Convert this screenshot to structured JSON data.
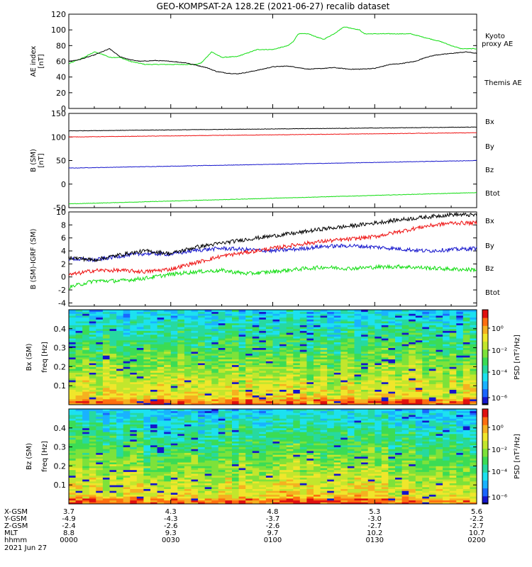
{
  "title": "GEO-KOMPSAT-2A 128.2E (2021-06-27) recalib dataset",
  "colors": {
    "black": "#000000",
    "red": "#ee1111",
    "blue": "#1515cc",
    "green": "#11dd11"
  },
  "chart_data": [
    {
      "type": "line",
      "id": "ae",
      "ylabel": "AE index [nT]",
      "ylim": [
        0,
        120
      ],
      "yticks": [
        0,
        20,
        40,
        60,
        80,
        100,
        120
      ],
      "legend_placement": "right",
      "series": [
        {
          "name": "Kyoto proxy AE",
          "color": "#11dd11",
          "x": [
            0,
            3,
            5,
            7,
            8,
            10,
            12,
            15,
            17,
            19,
            20,
            21,
            23,
            25,
            26,
            27,
            28,
            30,
            33,
            37,
            40,
            43,
            44,
            45,
            47,
            49,
            50,
            52,
            54,
            57,
            58,
            60,
            62,
            64,
            66,
            67,
            70,
            73,
            75,
            77,
            78,
            80
          ],
          "values": [
            57,
            65,
            72,
            68,
            65,
            65,
            60,
            56,
            56,
            56,
            56,
            56,
            56,
            56,
            58,
            65,
            72,
            65,
            66,
            75,
            75,
            80,
            85,
            95,
            95,
            90,
            88,
            95,
            104,
            100,
            95,
            95,
            95,
            95,
            95,
            95,
            90,
            85,
            80,
            76,
            76,
            76
          ]
        },
        {
          "name": "Themis AE",
          "color": "#000000",
          "x": [
            0,
            2,
            5,
            8,
            10,
            12,
            14,
            17,
            20,
            23,
            25,
            27,
            29,
            31,
            33,
            35,
            38,
            40,
            43,
            45,
            47,
            50,
            52,
            55,
            57,
            60,
            63,
            65,
            68,
            70,
            72,
            75,
            78,
            80
          ],
          "values": [
            60,
            62,
            68,
            76,
            66,
            62,
            60,
            61,
            60,
            58,
            55,
            52,
            47,
            45,
            44,
            46,
            50,
            53,
            54,
            52,
            50,
            51,
            52,
            50,
            50,
            51,
            56,
            57,
            60,
            65,
            68,
            70,
            72,
            70
          ]
        }
      ]
    },
    {
      "type": "line",
      "id": "bsm",
      "ylabel": "B (SM) [nT]",
      "ylim": [
        -50,
        150
      ],
      "yticks": [
        -50,
        0,
        50,
        100,
        150
      ],
      "legend_placement": "right",
      "series": [
        {
          "name": "Bx",
          "color": "#1515cc",
          "x": [
            0,
            80
          ],
          "values": [
            34,
            50
          ]
        },
        {
          "name": "By",
          "color": "#11dd11",
          "x": [
            0,
            80
          ],
          "values": [
            -42,
            -18
          ]
        },
        {
          "name": "Bz",
          "color": "#ee1111",
          "x": [
            0,
            80
          ],
          "values": [
            100,
            109
          ]
        },
        {
          "name": "Btot",
          "color": "#000000",
          "x": [
            0,
            80
          ],
          "values": [
            113,
            121
          ]
        }
      ]
    },
    {
      "type": "line",
      "id": "dbsm",
      "ylabel": "B (SM)-IGRF (SM)",
      "ylim": [
        -4.5,
        10
      ],
      "yticks": [
        -4,
        -2,
        0,
        2,
        4,
        6,
        8,
        10
      ],
      "legend_placement": "right",
      "series": [
        {
          "name": "Bx",
          "color": "#1515cc",
          "x": [
            0,
            5,
            10,
            15,
            20,
            25,
            30,
            35,
            40,
            45,
            50,
            55,
            60,
            65,
            70,
            75,
            80
          ],
          "values": [
            2.8,
            2.6,
            3.2,
            3.6,
            3.5,
            4.1,
            4.4,
            4.2,
            4.0,
            4.3,
            4.7,
            4.8,
            4.6,
            4.3,
            4.0,
            4.2,
            4.4
          ]
        },
        {
          "name": "By",
          "color": "#11dd11",
          "x": [
            0,
            5,
            10,
            15,
            20,
            25,
            30,
            35,
            40,
            45,
            50,
            55,
            60,
            65,
            70,
            75,
            80
          ],
          "values": [
            -1.6,
            -0.6,
            -0.6,
            -0.2,
            0.4,
            0.8,
            1.0,
            0.5,
            0.8,
            1.2,
            1.5,
            1.3,
            1.5,
            1.6,
            1.4,
            1.2,
            1.1
          ]
        },
        {
          "name": "Bz",
          "color": "#ee1111",
          "x": [
            0,
            5,
            10,
            15,
            20,
            25,
            30,
            35,
            40,
            45,
            50,
            55,
            60,
            65,
            70,
            75,
            80
          ],
          "values": [
            0.3,
            1.0,
            1.0,
            0.8,
            1.2,
            2.2,
            3.2,
            3.8,
            4.4,
            5.0,
            5.5,
            5.8,
            6.2,
            7.0,
            7.8,
            8.3,
            8.3
          ]
        },
        {
          "name": "Btot",
          "color": "#000000",
          "x": [
            0,
            5,
            10,
            15,
            20,
            25,
            30,
            35,
            40,
            45,
            50,
            55,
            60,
            65,
            70,
            75,
            80
          ],
          "values": [
            3.0,
            2.6,
            3.4,
            4.0,
            3.6,
            4.6,
            5.2,
            5.8,
            6.3,
            6.8,
            7.4,
            7.8,
            8.3,
            8.8,
            9.2,
            9.6,
            9.5
          ]
        }
      ]
    },
    {
      "type": "heatmap",
      "id": "specbx",
      "ylabel": "Bx (SM)",
      "ylabel2": "freq [Hz]",
      "ylim": [
        0,
        0.5
      ],
      "yticks": [
        0.1,
        0.2,
        0.3,
        0.4
      ],
      "colorbar": {
        "label": "PSD [nT²/Hz]",
        "ticks": [
          "10⁰",
          "10⁻²",
          "10⁻⁴",
          "10⁻⁶"
        ]
      }
    },
    {
      "type": "heatmap",
      "id": "specbz",
      "ylabel": "Bz (SM)",
      "ylabel2": "freq [Hz]",
      "ylim": [
        0,
        0.5
      ],
      "yticks": [
        0.1,
        0.2,
        0.3,
        0.4
      ],
      "colorbar": {
        "label": "PSD [nT²/Hz]",
        "ticks": [
          "10⁰",
          "10⁻²",
          "10⁻⁴",
          "10⁻⁶"
        ]
      }
    }
  ],
  "xaxis": {
    "row_labels": [
      "X-GSM",
      "Y-GSM",
      "Z-GSM",
      "MLT",
      "hhmm",
      "2021 Jun 27"
    ],
    "columns": [
      {
        "t": 0,
        "values": [
          "3.7",
          "-4.9",
          "-2.4",
          "8.8",
          "0000"
        ]
      },
      {
        "t": 20,
        "values": [
          "4.3",
          "-4.3",
          "-2.6",
          "9.3",
          "0030"
        ]
      },
      {
        "t": 40,
        "values": [
          "4.8",
          "-3.7",
          "-2.6",
          "9.7",
          "0100"
        ]
      },
      {
        "t": 60,
        "values": [
          "5.3",
          "-3.0",
          "-2.7",
          "10.2",
          "0130"
        ]
      },
      {
        "t": 80,
        "values": [
          "5.6",
          "-2.2",
          "-2.7",
          "10.7",
          "0200"
        ]
      }
    ]
  }
}
